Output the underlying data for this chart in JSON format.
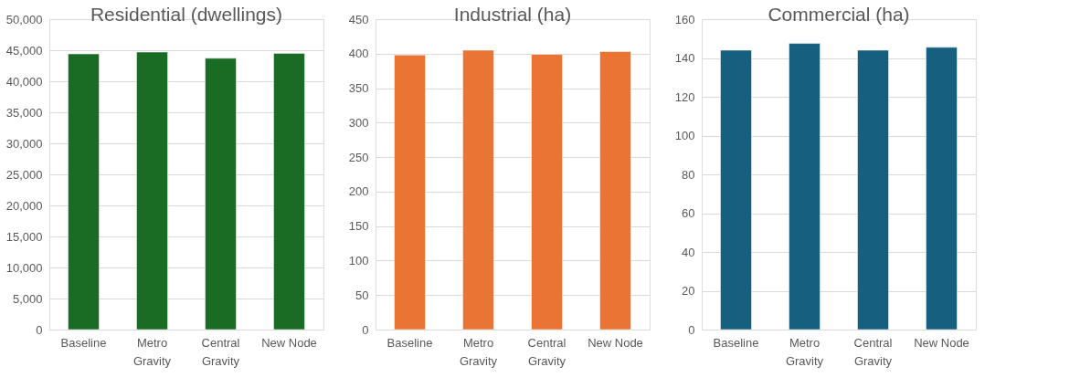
{
  "chart_data": [
    {
      "type": "bar",
      "title": "Residential (dwellings)",
      "categories": [
        "Baseline",
        "Metro Gravity",
        "Central Gravity",
        "New Node"
      ],
      "values": [
        44400,
        44700,
        43700,
        44500
      ],
      "color": "#1a6b24",
      "ylim": [
        0,
        50000
      ],
      "yticks": [
        {
          "value": 0,
          "label": "0"
        },
        {
          "value": 5000,
          "label": "5,000"
        },
        {
          "value": 10000,
          "label": "10,000"
        },
        {
          "value": 15000,
          "label": "15,000"
        },
        {
          "value": 20000,
          "label": "20,000"
        },
        {
          "value": 25000,
          "label": "25,000"
        },
        {
          "value": 30000,
          "label": "30,000"
        },
        {
          "value": 35000,
          "label": "35,000"
        },
        {
          "value": 40000,
          "label": "40,000"
        },
        {
          "value": 45000,
          "label": "45,000"
        },
        {
          "value": 50000,
          "label": "50,000"
        }
      ],
      "grid": "y"
    },
    {
      "type": "bar",
      "title": "Industrial (ha)",
      "categories": [
        "Baseline",
        "Metro Gravity",
        "Central Gravity",
        "New Node"
      ],
      "values": [
        398,
        405,
        399,
        403
      ],
      "color": "#ea7434",
      "ylim": [
        0,
        450
      ],
      "yticks": [
        0,
        50,
        100,
        150,
        200,
        250,
        300,
        350,
        400,
        450
      ],
      "grid": "y"
    },
    {
      "type": "bar",
      "title": "Commercial (ha)",
      "categories": [
        "Baseline",
        "Metro Gravity",
        "Central Gravity",
        "New Node"
      ],
      "values": [
        144,
        147.5,
        144,
        145.5
      ],
      "color": "#165f7f",
      "ylim": [
        0,
        160
      ],
      "yticks": [
        0,
        20,
        40,
        60,
        80,
        100,
        120,
        140,
        160
      ],
      "grid": "y"
    }
  ]
}
